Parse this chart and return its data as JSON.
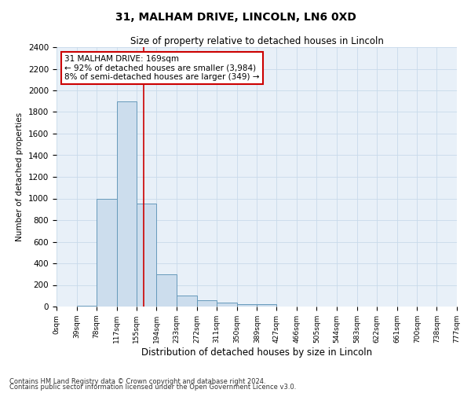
{
  "title": "31, MALHAM DRIVE, LINCOLN, LN6 0XD",
  "subtitle": "Size of property relative to detached houses in Lincoln",
  "xlabel": "Distribution of detached houses by size in Lincoln",
  "ylabel": "Number of detached properties",
  "bin_edges": [
    0,
    39,
    78,
    117,
    155,
    194,
    233,
    272,
    311,
    350,
    389,
    427,
    466,
    505,
    544,
    583,
    622,
    661,
    700,
    738,
    777
  ],
  "bar_heights": [
    0,
    5,
    1000,
    1900,
    950,
    300,
    100,
    60,
    40,
    25,
    20,
    0,
    0,
    0,
    0,
    0,
    0,
    0,
    0,
    0
  ],
  "bar_color": "#ccdded",
  "bar_edge_color": "#6699bb",
  "property_size": 169,
  "vline_color": "#cc0000",
  "ylim": [
    0,
    2400
  ],
  "yticks": [
    0,
    200,
    400,
    600,
    800,
    1000,
    1200,
    1400,
    1600,
    1800,
    2000,
    2200,
    2400
  ],
  "annotation_text": "31 MALHAM DRIVE: 169sqm\n← 92% of detached houses are smaller (3,984)\n8% of semi-detached houses are larger (349) →",
  "annotation_box_color": "#ffffff",
  "annotation_box_edge": "#cc0000",
  "footnote1": "Contains HM Land Registry data © Crown copyright and database right 2024.",
  "footnote2": "Contains public sector information licensed under the Open Government Licence v3.0.",
  "grid_color": "#c8daea",
  "bg_color": "#e8f0f8"
}
